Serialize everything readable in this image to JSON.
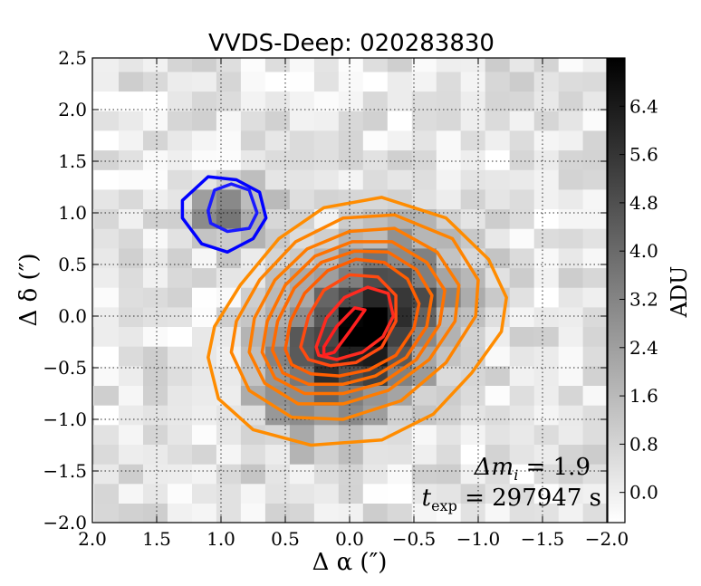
{
  "chart_data": {
    "type": "heatmap",
    "title": "VVDS-Deep: 020283830",
    "xlabel": "Δ α  (″)",
    "ylabel": "Δ δ  (″)",
    "xlim": [
      2.0,
      -2.0
    ],
    "ylim": [
      -2.0,
      2.5
    ],
    "x_ticks": [
      2.0,
      1.5,
      1.0,
      0.5,
      0.0,
      -0.5,
      -1.0,
      -1.5,
      -2.0
    ],
    "x_tick_labels": [
      "2.0",
      "1.5",
      "1.0",
      "0.5",
      "0.0",
      "−0.5",
      "−1.0",
      "−1.5",
      "−2.0"
    ],
    "y_ticks": [
      -2.0,
      -1.5,
      -1.0,
      -0.5,
      0.0,
      0.5,
      1.0,
      1.5,
      2.0,
      2.5
    ],
    "y_tick_labels": [
      "−2.0",
      "−1.5",
      "−1.0",
      "−0.5",
      "0.0",
      "0.5",
      "1.0",
      "1.5",
      "2.0",
      "2.5"
    ],
    "grid": true,
    "colorbar": {
      "label": "ADU",
      "range": [
        -0.5,
        7.2
      ],
      "ticks": [
        0.0,
        0.8,
        1.6,
        2.4,
        3.2,
        4.0,
        4.8,
        5.6,
        6.4
      ],
      "tick_labels": [
        "0.0",
        "0.8",
        "1.6",
        "2.4",
        "3.2",
        "4.0",
        "4.8",
        "5.6",
        "6.4"
      ],
      "colormap": "gray_r"
    },
    "sources": [
      {
        "name": "main",
        "x": -0.1,
        "y": -0.15,
        "peak": 7.0,
        "sigma_major": 0.62,
        "sigma_minor": 0.36,
        "angle_deg": 58
      },
      {
        "name": "companion",
        "x": 0.92,
        "y": 1.0,
        "peak": 3.2,
        "sigma_major": 0.24,
        "sigma_minor": 0.2,
        "angle_deg": 0
      }
    ],
    "contours": [
      {
        "color": "#ff8c00",
        "points": [
          [
            1.1,
            -0.4
          ],
          [
            1.05,
            -0.1
          ],
          [
            0.85,
            0.3
          ],
          [
            0.55,
            0.75
          ],
          [
            0.2,
            1.05
          ],
          [
            -0.25,
            1.15
          ],
          [
            -0.75,
            0.95
          ],
          [
            -1.08,
            0.55
          ],
          [
            -1.22,
            0.18
          ],
          [
            -1.18,
            -0.15
          ],
          [
            -0.95,
            -0.55
          ],
          [
            -0.65,
            -0.95
          ],
          [
            -0.25,
            -1.2
          ],
          [
            0.3,
            -1.25
          ],
          [
            0.75,
            -1.1
          ],
          [
            1.02,
            -0.8
          ]
        ]
      },
      {
        "color": "#ff8400",
        "points": [
          [
            0.92,
            -0.35
          ],
          [
            0.88,
            -0.05
          ],
          [
            0.7,
            0.35
          ],
          [
            0.42,
            0.72
          ],
          [
            0.05,
            0.95
          ],
          [
            -0.35,
            0.98
          ],
          [
            -0.8,
            0.75
          ],
          [
            -1.0,
            0.35
          ],
          [
            -0.98,
            0.0
          ],
          [
            -0.75,
            -0.45
          ],
          [
            -0.4,
            -0.82
          ],
          [
            0.05,
            -1.0
          ],
          [
            0.45,
            -0.98
          ],
          [
            0.78,
            -0.72
          ]
        ]
      },
      {
        "color": "#ff7c00",
        "points": [
          [
            0.78,
            -0.35
          ],
          [
            0.74,
            -0.02
          ],
          [
            0.58,
            0.35
          ],
          [
            0.33,
            0.65
          ],
          [
            0.0,
            0.82
          ],
          [
            -0.35,
            0.85
          ],
          [
            -0.68,
            0.62
          ],
          [
            -0.85,
            0.3
          ],
          [
            -0.82,
            -0.05
          ],
          [
            -0.62,
            -0.42
          ],
          [
            -0.3,
            -0.72
          ],
          [
            0.05,
            -0.85
          ],
          [
            0.4,
            -0.85
          ],
          [
            0.66,
            -0.65
          ]
        ]
      },
      {
        "color": "#ff7200",
        "points": [
          [
            0.68,
            -0.35
          ],
          [
            0.64,
            -0.05
          ],
          [
            0.5,
            0.3
          ],
          [
            0.27,
            0.58
          ],
          [
            -0.02,
            0.72
          ],
          [
            -0.33,
            0.72
          ],
          [
            -0.6,
            0.52
          ],
          [
            -0.74,
            0.25
          ],
          [
            -0.7,
            -0.08
          ],
          [
            -0.52,
            -0.42
          ],
          [
            -0.25,
            -0.65
          ],
          [
            0.05,
            -0.75
          ],
          [
            0.35,
            -0.75
          ],
          [
            0.58,
            -0.6
          ]
        ]
      },
      {
        "color": "#ff6a00",
        "points": [
          [
            0.6,
            -0.33
          ],
          [
            0.56,
            -0.05
          ],
          [
            0.43,
            0.27
          ],
          [
            0.22,
            0.52
          ],
          [
            -0.04,
            0.63
          ],
          [
            -0.3,
            0.62
          ],
          [
            -0.52,
            0.45
          ],
          [
            -0.64,
            0.2
          ],
          [
            -0.6,
            -0.1
          ],
          [
            -0.44,
            -0.4
          ],
          [
            -0.2,
            -0.58
          ],
          [
            0.05,
            -0.66
          ],
          [
            0.32,
            -0.66
          ],
          [
            0.52,
            -0.55
          ]
        ]
      },
      {
        "color": "#ff5e00",
        "points": [
          [
            0.5,
            -0.32
          ],
          [
            0.46,
            -0.05
          ],
          [
            0.35,
            0.22
          ],
          [
            0.17,
            0.44
          ],
          [
            -0.05,
            0.55
          ],
          [
            -0.27,
            0.52
          ],
          [
            -0.45,
            0.36
          ],
          [
            -0.54,
            0.12
          ],
          [
            -0.5,
            -0.12
          ],
          [
            -0.36,
            -0.38
          ],
          [
            -0.15,
            -0.52
          ],
          [
            0.08,
            -0.58
          ],
          [
            0.3,
            -0.56
          ],
          [
            0.45,
            -0.47
          ]
        ]
      },
      {
        "color": "#ff4a10",
        "points": [
          [
            0.38,
            -0.3
          ],
          [
            0.32,
            0.0
          ],
          [
            0.2,
            0.25
          ],
          [
            0.0,
            0.4
          ],
          [
            -0.22,
            0.38
          ],
          [
            -0.36,
            0.2
          ],
          [
            -0.36,
            -0.05
          ],
          [
            -0.25,
            -0.3
          ],
          [
            -0.05,
            -0.45
          ],
          [
            0.15,
            -0.48
          ],
          [
            0.32,
            -0.42
          ]
        ]
      },
      {
        "color": "#ff2a20",
        "points": [
          [
            0.26,
            -0.3
          ],
          [
            0.18,
            -0.02
          ],
          [
            0.04,
            0.18
          ],
          [
            -0.14,
            0.28
          ],
          [
            -0.3,
            0.22
          ],
          [
            -0.34,
            0.0
          ],
          [
            -0.26,
            -0.2
          ],
          [
            -0.1,
            -0.35
          ],
          [
            0.1,
            -0.42
          ],
          [
            0.24,
            -0.38
          ]
        ]
      },
      {
        "color": "#ff1f1f",
        "points": [
          [
            0.2,
            -0.3
          ],
          [
            0.1,
            -0.1
          ],
          [
            -0.04,
            0.08
          ],
          [
            -0.12,
            0.06
          ],
          [
            0.0,
            -0.15
          ],
          [
            0.12,
            -0.35
          ],
          [
            0.2,
            -0.38
          ]
        ]
      },
      {
        "color": "#1a1aff",
        "points": [
          [
            1.1,
            1.02
          ],
          [
            1.05,
            1.22
          ],
          [
            0.92,
            1.28
          ],
          [
            0.78,
            1.22
          ],
          [
            0.72,
            1.0
          ],
          [
            0.78,
            0.85
          ],
          [
            0.95,
            0.82
          ],
          [
            1.08,
            0.9
          ]
        ]
      },
      {
        "color": "#0000ff",
        "points": [
          [
            1.3,
            1.12
          ],
          [
            1.1,
            1.35
          ],
          [
            0.88,
            1.32
          ],
          [
            0.7,
            1.2
          ],
          [
            0.65,
            0.95
          ],
          [
            0.75,
            0.75
          ],
          [
            0.95,
            0.62
          ],
          [
            1.15,
            0.7
          ],
          [
            1.3,
            0.95
          ]
        ]
      }
    ],
    "annotations": [
      {
        "kind": "delta_m",
        "symbol": "Δm",
        "sub": "i",
        "relation": " = ",
        "value": "1.9"
      },
      {
        "kind": "exposure",
        "symbol": "t",
        "sub": "exp",
        "relation": " = ",
        "value": "297947 s"
      }
    ]
  }
}
